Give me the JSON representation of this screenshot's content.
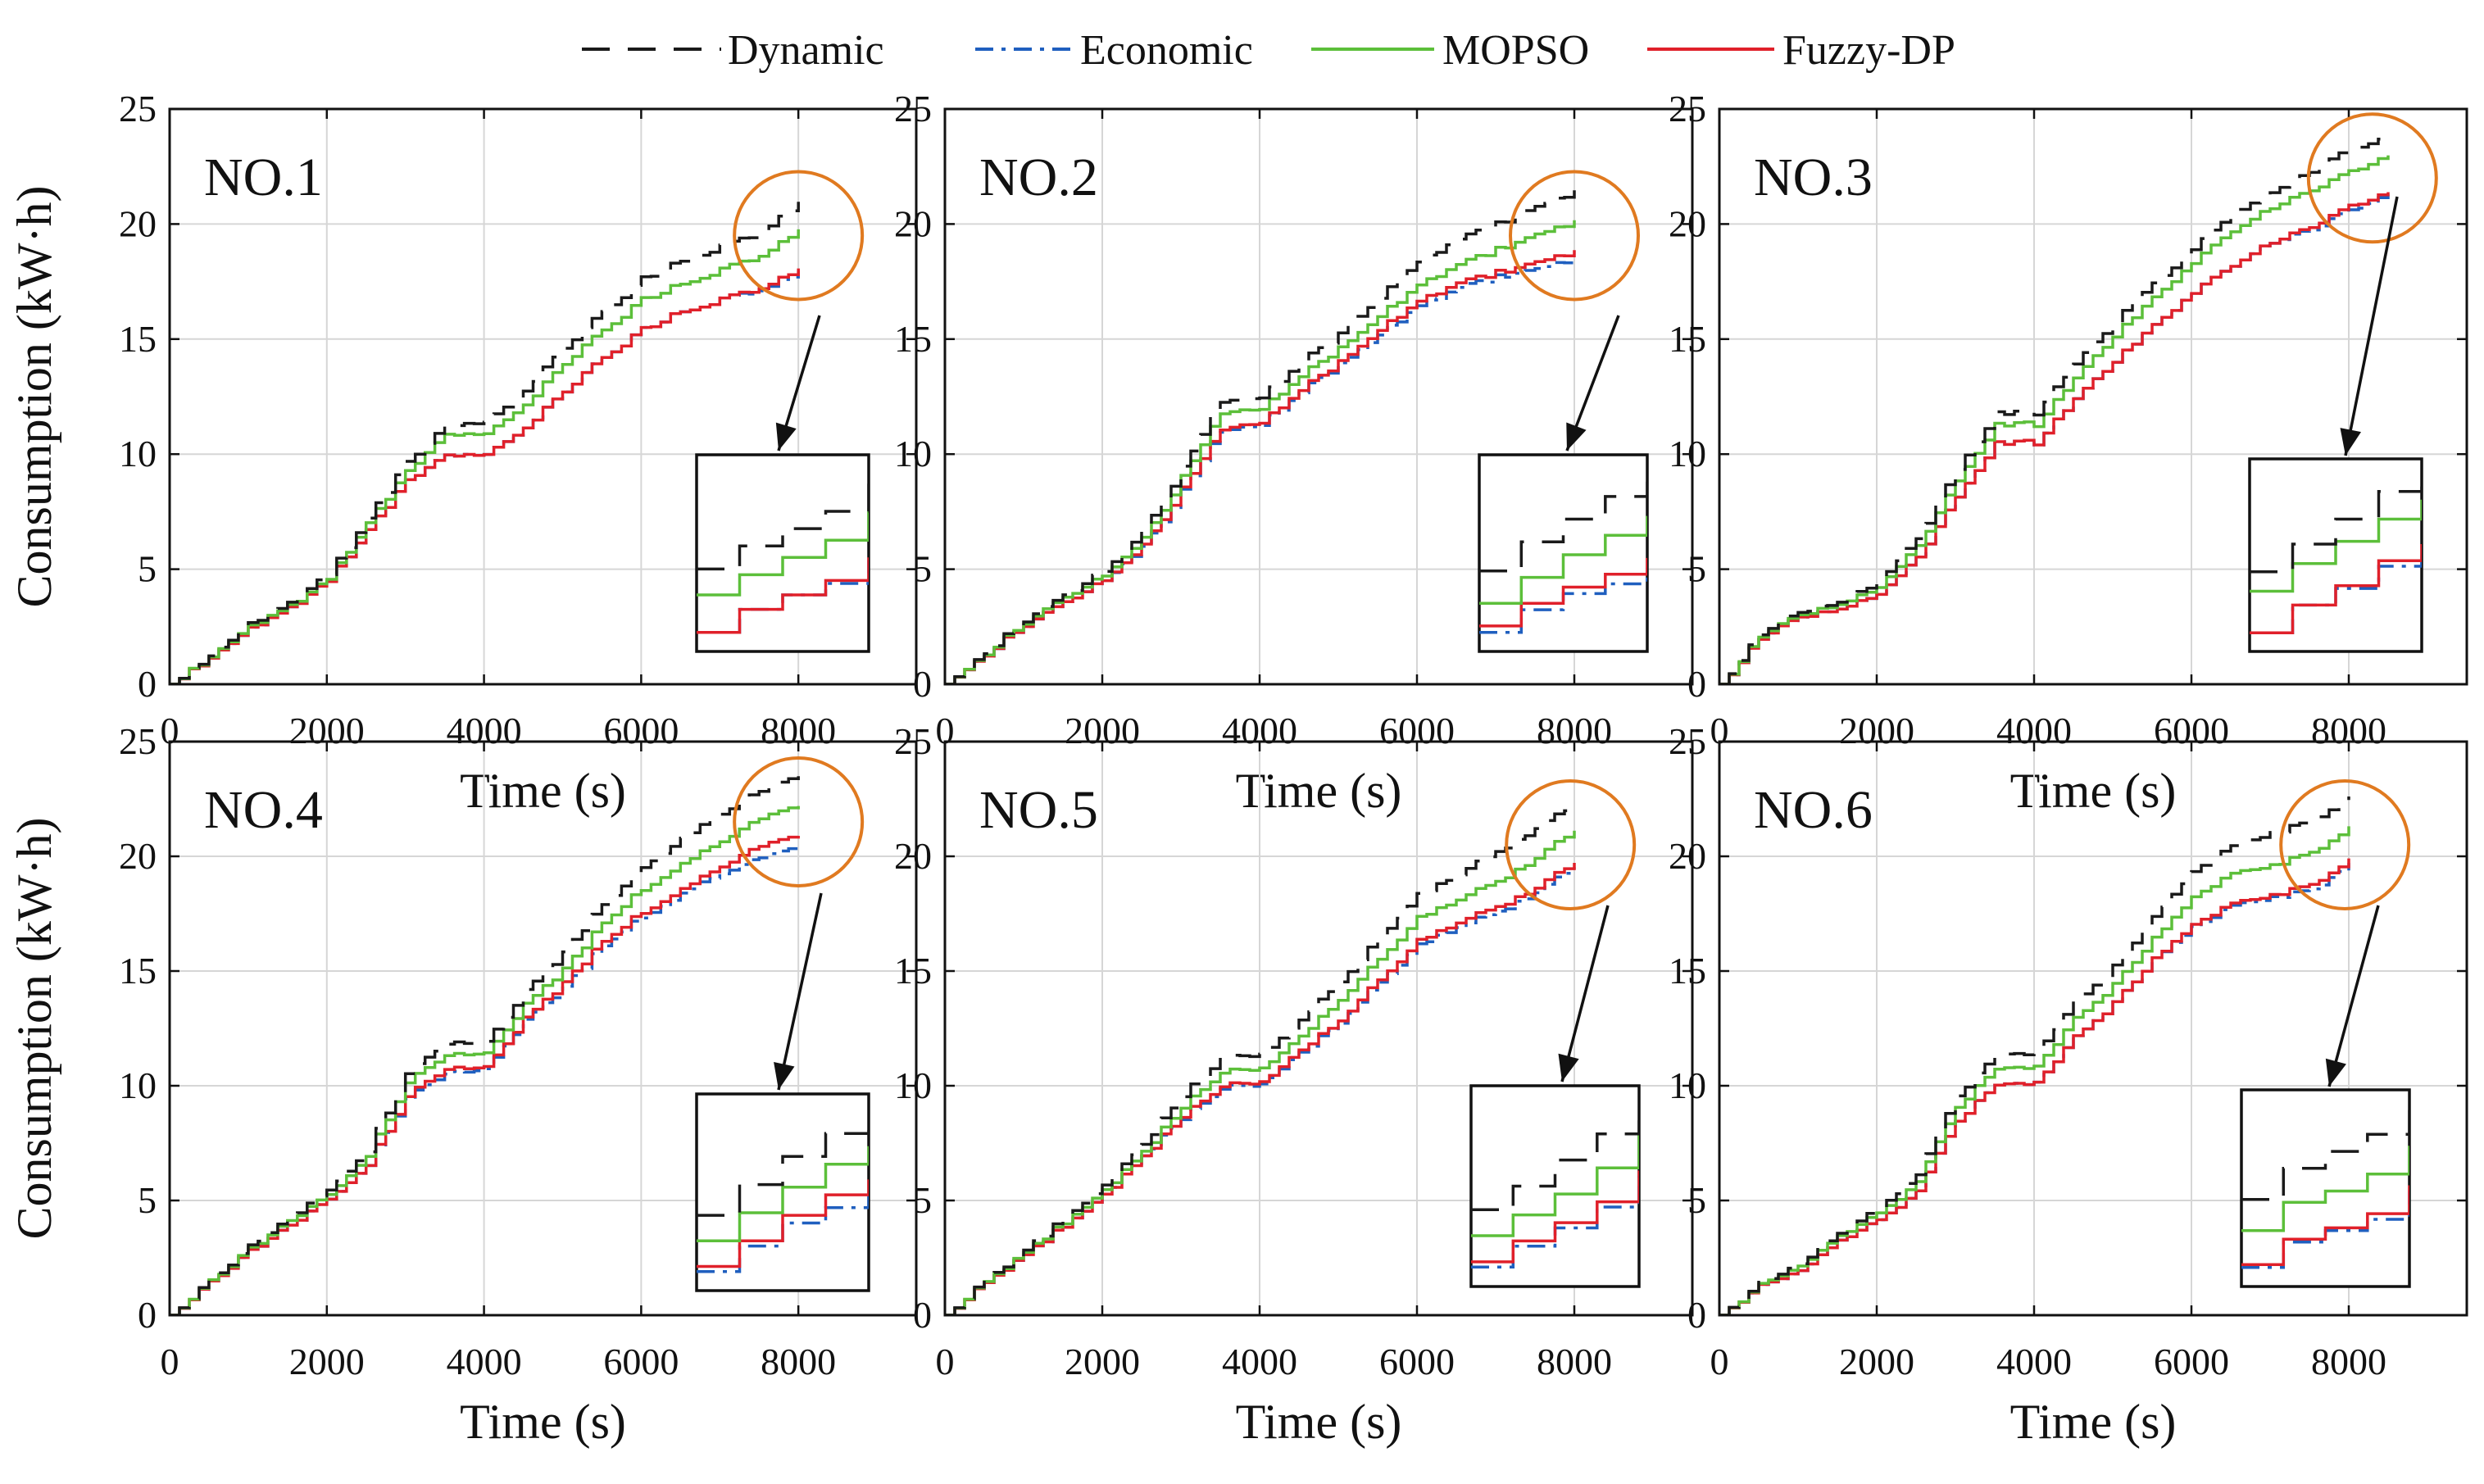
{
  "legend": [
    {
      "name": "Dynamic",
      "color": "#1a1a1a",
      "dash": "long-dash"
    },
    {
      "name": "Economic",
      "color": "#1f5fbf",
      "dash": "dash-dot"
    },
    {
      "name": "MOPSO",
      "color": "#5cbf3a",
      "dash": "solid"
    },
    {
      "name": "Fuzzy-DP",
      "color": "#e0202a",
      "dash": "solid"
    }
  ],
  "axes": {
    "xlabel": "Time (s)",
    "ylabel": "Consumption (kW·h)",
    "xticks": [
      "0",
      "2000",
      "4000",
      "6000",
      "8000"
    ],
    "yticks": [
      "0",
      "5",
      "10",
      "15",
      "20",
      "25"
    ]
  },
  "highlight_color": "#e07a20",
  "chart_data": [
    {
      "type": "line",
      "label": "NO.1",
      "xlim": [
        0,
        9500
      ],
      "ylim": [
        0,
        25
      ],
      "grid": true,
      "x": [
        0,
        500,
        1000,
        1500,
        2000,
        2500,
        3000,
        3500,
        4000,
        4500,
        5000,
        5500,
        6000,
        6500,
        7000,
        7500,
        8000
      ],
      "series": [
        {
          "name": "Dynamic",
          "values": [
            0,
            1.3,
            2.6,
            3.5,
            4.8,
            7.2,
            9.6,
            11.2,
            11.3,
            12.8,
            14.6,
            16.2,
            17.6,
            18.4,
            19.0,
            19.6,
            20.9
          ]
        },
        {
          "name": "Economic",
          "values": [
            0,
            1.2,
            2.4,
            3.3,
            4.5,
            6.7,
            8.8,
            9.9,
            9.9,
            11.2,
            12.7,
            14.2,
            15.4,
            16.2,
            16.7,
            17.1,
            17.9
          ]
        },
        {
          "name": "MOPSO",
          "values": [
            0,
            1.25,
            2.5,
            3.4,
            4.6,
            7.0,
            9.2,
            10.8,
            10.8,
            12.2,
            13.9,
            15.4,
            16.7,
            17.4,
            18.0,
            18.6,
            19.7
          ]
        },
        {
          "name": "Fuzzy-DP",
          "values": [
            0,
            1.2,
            2.4,
            3.3,
            4.5,
            6.7,
            8.8,
            9.9,
            9.9,
            11.2,
            12.7,
            14.2,
            15.4,
            16.2,
            16.7,
            17.2,
            18.0
          ]
        }
      ],
      "zoom_center": [
        8000,
        19.5
      ],
      "inset_range": [
        6000,
        8000
      ]
    },
    {
      "type": "line",
      "label": "NO.2",
      "xlim": [
        0,
        9500
      ],
      "ylim": [
        0,
        25
      ],
      "grid": true,
      "x": [
        0,
        500,
        1000,
        1500,
        2000,
        2500,
        3000,
        3500,
        4000,
        4500,
        5000,
        5500,
        6000,
        6500,
        7000,
        7500,
        8000
      ],
      "series": [
        {
          "name": "Dynamic",
          "values": [
            0,
            1.4,
            2.8,
            3.9,
            4.9,
            6.6,
            9.4,
            12.3,
            12.5,
            14.0,
            15.2,
            16.8,
            18.4,
            19.3,
            20.0,
            20.7,
            21.4
          ]
        },
        {
          "name": "Economic",
          "values": [
            0,
            1.3,
            2.6,
            3.6,
            4.5,
            5.9,
            8.4,
            11.0,
            11.3,
            12.7,
            13.9,
            15.2,
            16.5,
            17.2,
            17.7,
            18.0,
            18.5
          ]
        },
        {
          "name": "MOPSO",
          "values": [
            0,
            1.35,
            2.7,
            3.8,
            4.7,
            6.3,
            9.0,
            11.8,
            12.0,
            13.4,
            14.6,
            16.0,
            17.4,
            18.2,
            18.9,
            19.5,
            20.1
          ]
        },
        {
          "name": "Fuzzy-DP",
          "values": [
            0,
            1.3,
            2.6,
            3.6,
            4.5,
            6.0,
            8.5,
            11.1,
            11.4,
            12.8,
            14.0,
            15.4,
            16.7,
            17.4,
            17.9,
            18.3,
            18.8
          ]
        }
      ],
      "zoom_center": [
        8000,
        19.5
      ],
      "inset_range": [
        6000,
        8000
      ]
    },
    {
      "type": "line",
      "label": "NO.3",
      "xlim": [
        0,
        9500
      ],
      "ylim": [
        0,
        25
      ],
      "grid": true,
      "x": [
        0,
        500,
        1000,
        1500,
        2000,
        2500,
        3000,
        3500,
        4000,
        4500,
        5000,
        5500,
        6000,
        6500,
        7000,
        7500,
        8000,
        8500
      ],
      "series": [
        {
          "name": "Dynamic",
          "values": [
            0,
            2.2,
            3.1,
            3.5,
            4.4,
            6.3,
            9.4,
            11.8,
            11.8,
            13.9,
            15.8,
            17.4,
            18.9,
            20.4,
            21.4,
            22.3,
            23.3,
            23.8
          ]
        },
        {
          "name": "Economic",
          "values": [
            0,
            2.0,
            2.9,
            3.2,
            3.9,
            5.5,
            8.2,
            10.5,
            10.5,
            12.4,
            14.1,
            15.6,
            17.0,
            18.2,
            19.2,
            19.8,
            20.6,
            21.3
          ]
        },
        {
          "name": "MOPSO",
          "values": [
            0,
            2.1,
            3.0,
            3.4,
            4.2,
            6.0,
            8.9,
            11.3,
            11.3,
            13.3,
            15.2,
            16.8,
            18.3,
            19.7,
            20.7,
            21.5,
            22.3,
            23.0
          ]
        },
        {
          "name": "Fuzzy-DP",
          "values": [
            0,
            2.0,
            2.9,
            3.2,
            3.9,
            5.5,
            8.2,
            10.5,
            10.5,
            12.4,
            14.1,
            15.6,
            17.0,
            18.2,
            19.2,
            19.9,
            20.8,
            21.4
          ]
        }
      ],
      "zoom_center": [
        8300,
        22.0
      ],
      "inset_range": [
        6500,
        8500
      ]
    },
    {
      "type": "line",
      "label": "NO.4",
      "xlim": [
        0,
        9500
      ],
      "ylim": [
        0,
        25
      ],
      "grid": true,
      "x": [
        0,
        500,
        1000,
        1500,
        2000,
        2500,
        3000,
        3500,
        4000,
        4500,
        5000,
        5500,
        6000,
        6500,
        7000,
        7500,
        8000
      ],
      "series": [
        {
          "name": "Dynamic",
          "values": [
            0,
            1.5,
            3.0,
            4.2,
            5.4,
            7.2,
            10.6,
            11.9,
            11.9,
            14.1,
            15.8,
            17.9,
            19.6,
            20.8,
            21.9,
            22.8,
            23.6
          ]
        },
        {
          "name": "Economic",
          "values": [
            0,
            1.4,
            2.8,
            3.9,
            5.0,
            6.6,
            9.5,
            10.6,
            10.7,
            12.8,
            14.3,
            16.1,
            17.4,
            18.4,
            19.3,
            19.9,
            20.5
          ]
        },
        {
          "name": "MOPSO",
          "values": [
            0,
            1.45,
            2.9,
            4.1,
            5.2,
            7.0,
            10.2,
            11.4,
            11.4,
            13.5,
            15.1,
            17.1,
            18.6,
            19.7,
            20.7,
            21.6,
            22.3
          ]
        },
        {
          "name": "Fuzzy-DP",
          "values": [
            0,
            1.4,
            2.8,
            3.9,
            5.0,
            6.6,
            9.6,
            10.8,
            10.8,
            12.9,
            14.5,
            16.3,
            17.6,
            18.6,
            19.6,
            20.4,
            21.0
          ]
        }
      ],
      "zoom_center": [
        8000,
        21.5
      ],
      "inset_range": [
        6000,
        8000
      ]
    },
    {
      "type": "line",
      "label": "NO.5",
      "xlim": [
        0,
        9500
      ],
      "ylim": [
        0,
        25
      ],
      "grid": true,
      "x": [
        0,
        500,
        1000,
        1500,
        2000,
        2500,
        3000,
        3500,
        4000,
        4500,
        5000,
        5500,
        6000,
        6500,
        7000,
        7500,
        8000
      ],
      "series": [
        {
          "name": "Dynamic",
          "values": [
            0,
            1.5,
            2.9,
            4.2,
            5.6,
            7.4,
            9.6,
            11.2,
            11.3,
            12.8,
            14.6,
            16.5,
            18.3,
            19.2,
            20.2,
            21.2,
            22.3
          ]
        },
        {
          "name": "Economic",
          "values": [
            0,
            1.4,
            2.7,
            3.9,
            5.2,
            6.9,
            8.6,
            9.9,
            10.0,
            11.4,
            12.8,
            14.6,
            16.1,
            16.9,
            17.6,
            18.4,
            19.6
          ]
        },
        {
          "name": "MOPSO",
          "values": [
            0,
            1.45,
            2.8,
            4.05,
            5.4,
            7.1,
            9.1,
            10.6,
            10.7,
            12.1,
            13.8,
            15.6,
            17.3,
            18.1,
            18.9,
            19.9,
            21.2
          ]
        },
        {
          "name": "Fuzzy-DP",
          "values": [
            0,
            1.4,
            2.7,
            3.9,
            5.2,
            6.9,
            8.7,
            10.0,
            10.1,
            11.5,
            12.9,
            14.7,
            16.3,
            17.1,
            17.8,
            18.6,
            19.8
          ]
        }
      ],
      "zoom_center": [
        7950,
        20.5
      ],
      "inset_range": [
        6000,
        8000
      ]
    },
    {
      "type": "line",
      "label": "NO.6",
      "xlim": [
        0,
        9500
      ],
      "ylim": [
        0,
        25
      ],
      "grid": true,
      "x": [
        0,
        500,
        1000,
        1500,
        2000,
        2500,
        3000,
        3500,
        4000,
        4500,
        5000,
        5500,
        6000,
        6500,
        7000,
        7500,
        8000
      ],
      "series": [
        {
          "name": "Dynamic",
          "values": [
            0,
            1.4,
            2.3,
            3.6,
            4.6,
            6.1,
            9.6,
            11.3,
            11.4,
            13.6,
            15.2,
            17.3,
            19.3,
            20.4,
            21.0,
            21.6,
            22.5
          ]
        },
        {
          "name": "Economic",
          "values": [
            0,
            1.3,
            2.0,
            3.3,
            4.1,
            5.4,
            8.5,
            10.0,
            10.1,
            12.1,
            13.6,
            15.5,
            16.9,
            17.8,
            18.2,
            18.6,
            19.6
          ]
        },
        {
          "name": "MOPSO",
          "values": [
            0,
            1.35,
            2.2,
            3.5,
            4.4,
            5.8,
            9.1,
            10.7,
            10.8,
            12.9,
            14.4,
            16.4,
            18.2,
            19.2,
            19.6,
            20.2,
            21.2
          ]
        },
        {
          "name": "Fuzzy-DP",
          "values": [
            0,
            1.3,
            2.0,
            3.3,
            4.1,
            5.4,
            8.5,
            10.0,
            10.1,
            12.1,
            13.6,
            15.5,
            17.0,
            17.9,
            18.3,
            18.8,
            19.8
          ]
        }
      ],
      "zoom_center": [
        7950,
        20.5
      ],
      "inset_range": [
        6000,
        8000
      ]
    }
  ]
}
